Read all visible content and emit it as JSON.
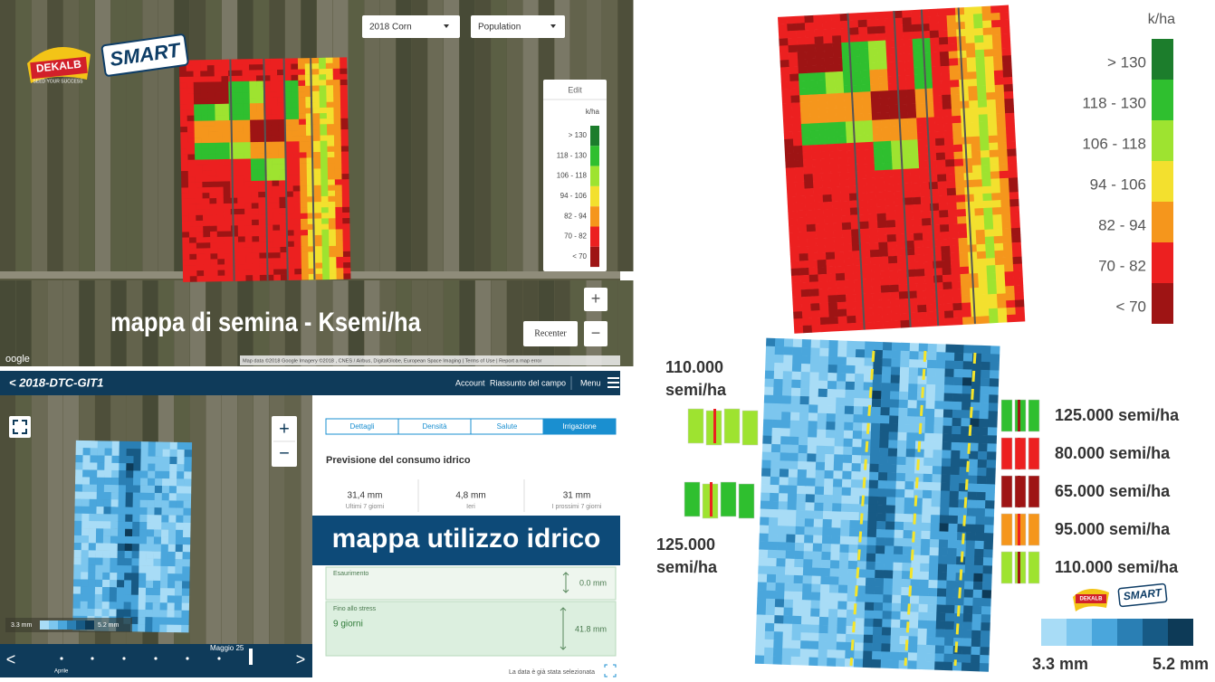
{
  "seeding_map": {
    "dropdowns": [
      "2018 Corn",
      "Population"
    ],
    "legend": {
      "button": "Edit",
      "unit": "k/ha",
      "items": [
        {
          "label": "> 130",
          "color": "#1c7d2c"
        },
        {
          "label": "118 - 130",
          "color": "#2fbf2f"
        },
        {
          "label": "106 - 118",
          "color": "#9ee330"
        },
        {
          "label": "94 - 106",
          "color": "#f3e02e"
        },
        {
          "label": "82 - 94",
          "color": "#f5961c"
        },
        {
          "label": "70 - 82",
          "color": "#ec2020"
        },
        {
          "label": "< 70",
          "color": "#9e1414"
        }
      ]
    },
    "zoom_in": "+",
    "zoom_out": "−",
    "recenter": "Recenter",
    "caption": "mappa di semina  -  Ksemi/ha",
    "google": "oogle",
    "attribution": "Map data ©2018 Google Imagery ©2018 , CNES / Airbus, DigitalGlobe, European Space Imaging | Terms of Use | Report a map error"
  },
  "brand": {
    "logo": "DEKALB",
    "tagline": "SEED YOUR SUCCESS",
    "smart": "SMART"
  },
  "app": {
    "back": "< 2018-DTC-GIT1",
    "nav": [
      "Account",
      "Riassunto del campo",
      "Menu"
    ],
    "zoom_in": "+",
    "zoom_out": "−",
    "tabs": [
      "Dettagli",
      "Densità",
      "Salute",
      "Irrigazione"
    ],
    "section_title": "Previsione del consumo idrico",
    "stats": [
      {
        "value": "31,4 mm",
        "label": "Ultimi 7 giorni"
      },
      {
        "value": "4,8 mm",
        "label": "Ieri"
      },
      {
        "value": "31 mm",
        "label": "I prossimi 7 giorni"
      }
    ],
    "banner": "mappa utilizzo idrico",
    "depletion": {
      "label": "Esaurimento",
      "value": "0.0 mm"
    },
    "stress": {
      "label": "Fino allo stress",
      "days": "9 giorni",
      "value": "41.8 mm"
    },
    "scale": {
      "min": "3.3 mm",
      "max": "5.2 mm"
    },
    "timeline": {
      "date": "Maggio 25",
      "month": "Aprile",
      "prev": "<",
      "next": ">"
    },
    "footer": "La data è già stata selezionata"
  },
  "overview": {
    "unit": "k/ha",
    "legend": [
      "> 130",
      "118 - 130",
      "106 - 118",
      "94 - 106",
      "82 - 94",
      "70 - 82",
      "< 70"
    ],
    "left_labels": [
      {
        "value": "110.000",
        "unit": "semi/ha"
      },
      {
        "value": "125.000",
        "unit": "semi/ha"
      }
    ],
    "right_labels": [
      "125.000 semi/ha",
      "80.000 semi/ha",
      "65.000 semi/ha",
      "95.000 semi/ha",
      "110.000 semi/ha"
    ],
    "water_scale": {
      "min": "3.3 mm",
      "max": "5.2 mm",
      "colors": [
        "#a8dcf6",
        "#7cc6ee",
        "#4aa6dc",
        "#2a7fb4",
        "#175a85",
        "#0d3a57"
      ]
    }
  }
}
